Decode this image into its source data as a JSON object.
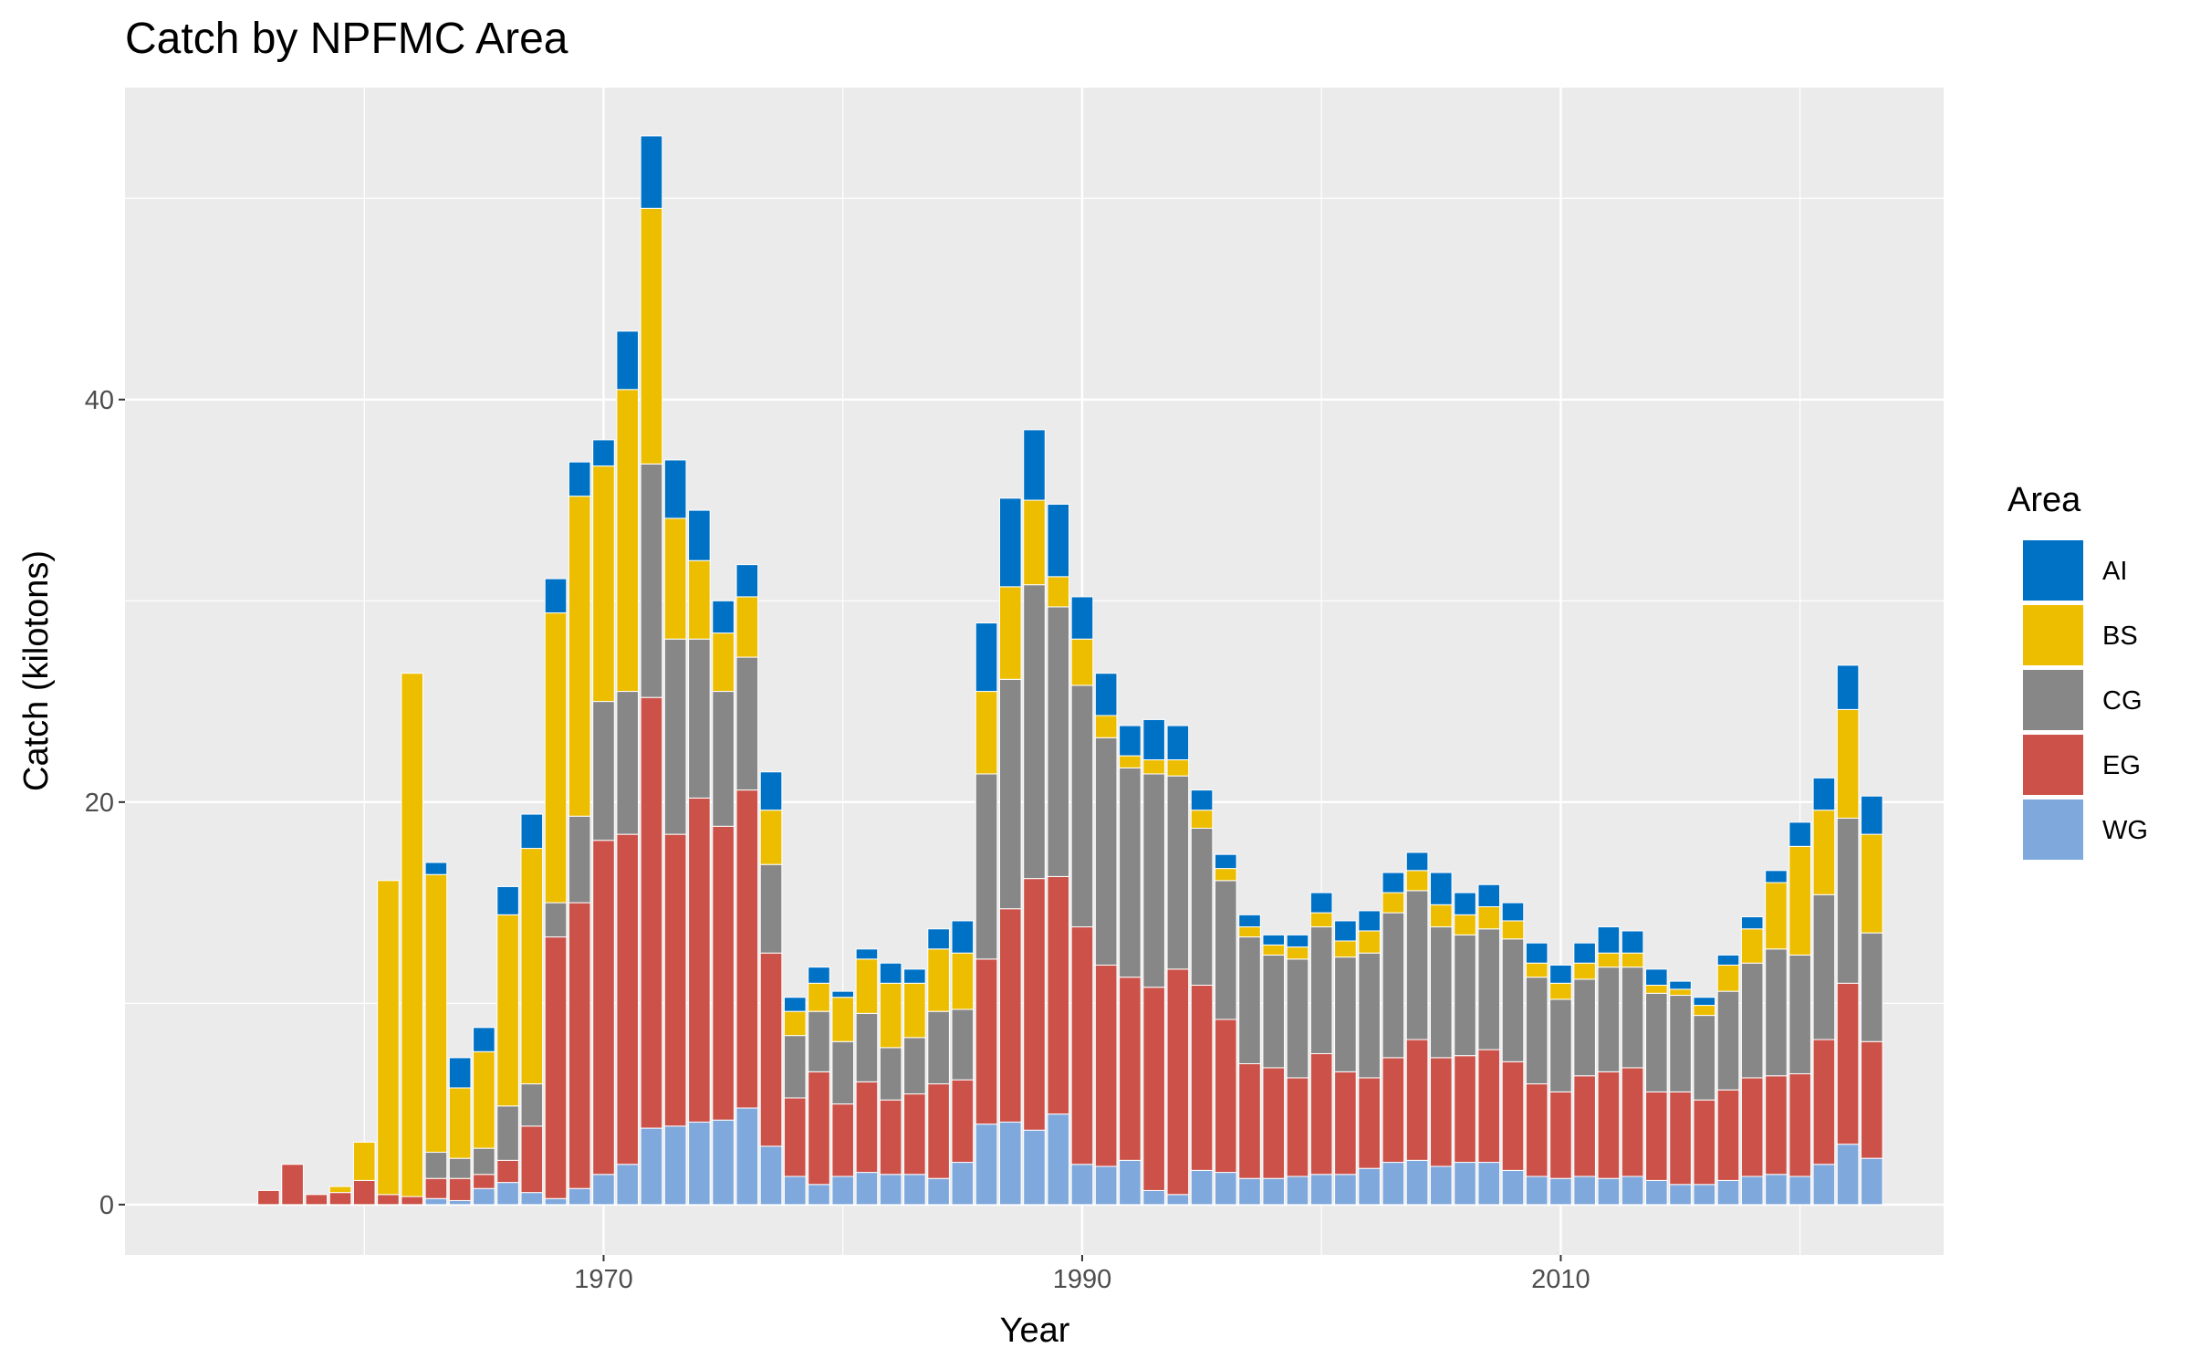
{
  "chart_data": {
    "type": "bar",
    "stacked": true,
    "title": "Catch by NPFMC Area",
    "xlabel": "Year",
    "ylabel": "Catch (kilotons)",
    "xlim": [
      1950,
      2026
    ],
    "ylim": [
      -2.5,
      55.5
    ],
    "x_ticks": [
      1970,
      1990,
      2010
    ],
    "y_ticks": [
      0,
      20,
      40
    ],
    "grid": true,
    "legend_title": "Area",
    "legend_position": "right",
    "x": [
      1956,
      1957,
      1958,
      1959,
      1960,
      1961,
      1962,
      1963,
      1964,
      1965,
      1966,
      1967,
      1968,
      1969,
      1970,
      1971,
      1972,
      1973,
      1974,
      1975,
      1976,
      1977,
      1978,
      1979,
      1980,
      1981,
      1982,
      1983,
      1984,
      1985,
      1986,
      1987,
      1988,
      1989,
      1990,
      1991,
      1992,
      1993,
      1994,
      1995,
      1996,
      1997,
      1998,
      1999,
      2000,
      2001,
      2002,
      2003,
      2004,
      2005,
      2006,
      2007,
      2008,
      2009,
      2010,
      2011,
      2012,
      2013,
      2014,
      2015,
      2016,
      2017,
      2018,
      2019,
      2020,
      2021,
      2022,
      2023
    ],
    "series": [
      {
        "name": "WG",
        "color": "#7fa8dd",
        "values": [
          0,
          0,
          0,
          0,
          0,
          0,
          0,
          0.3,
          0.2,
          0.8,
          1.1,
          0.6,
          0.3,
          0.8,
          1.5,
          2.0,
          3.8,
          3.9,
          4.1,
          4.2,
          4.8,
          2.9,
          1.4,
          1.0,
          1.4,
          1.6,
          1.5,
          1.5,
          1.3,
          2.1,
          4.0,
          4.1,
          3.7,
          4.5,
          2.0,
          1.9,
          2.2,
          0.7,
          0.5,
          1.7,
          1.6,
          1.3,
          1.3,
          1.4,
          1.5,
          1.5,
          1.8,
          2.1,
          2.2,
          1.9,
          2.1,
          2.1,
          1.7,
          1.4,
          1.3,
          1.4,
          1.3,
          1.4,
          1.2,
          1.0,
          1.0,
          1.2,
          1.4,
          1.5,
          1.4,
          2.0,
          3.0,
          2.3
        ]
      },
      {
        "name": "EG",
        "color": "#cc5148",
        "values": [
          0.7,
          2.0,
          0.5,
          0.6,
          1.2,
          0.5,
          0.4,
          1.0,
          1.1,
          0.7,
          1.1,
          3.3,
          13.0,
          14.2,
          16.6,
          16.4,
          21.4,
          14.5,
          16.1,
          14.6,
          15.8,
          9.6,
          3.9,
          5.6,
          3.6,
          4.5,
          3.7,
          4.0,
          4.7,
          4.1,
          8.2,
          10.6,
          12.5,
          11.8,
          11.8,
          10.0,
          9.1,
          10.1,
          11.2,
          9.2,
          7.6,
          5.7,
          5.5,
          4.9,
          6.0,
          5.1,
          4.5,
          5.2,
          6.0,
          5.4,
          5.3,
          5.6,
          5.4,
          4.6,
          4.3,
          5.0,
          5.3,
          5.4,
          4.4,
          4.6,
          4.2,
          4.5,
          4.9,
          4.9,
          5.1,
          6.2,
          8.0,
          5.8
        ]
      },
      {
        "name": "CG",
        "color": "#878787",
        "values": [
          0,
          0,
          0,
          0,
          0,
          0,
          0,
          1.3,
          1.0,
          1.3,
          2.7,
          2.1,
          1.7,
          4.3,
          6.9,
          7.1,
          11.6,
          9.7,
          7.9,
          6.7,
          6.6,
          4.4,
          3.1,
          3.0,
          3.1,
          3.4,
          2.6,
          2.8,
          3.6,
          3.5,
          9.2,
          11.4,
          14.6,
          13.4,
          12.0,
          11.3,
          10.4,
          10.6,
          9.6,
          7.8,
          6.9,
          6.3,
          5.6,
          5.9,
          6.3,
          5.7,
          6.2,
          7.2,
          7.4,
          6.5,
          6.0,
          6.0,
          6.1,
          5.3,
          4.6,
          4.8,
          5.2,
          5.0,
          4.9,
          4.8,
          4.2,
          4.9,
          5.7,
          6.3,
          5.9,
          7.2,
          8.2,
          5.4
        ]
      },
      {
        "name": "BS",
        "color": "#edbe00",
        "values": [
          0,
          0,
          0,
          0.3,
          1.9,
          15.6,
          26.0,
          13.8,
          3.5,
          4.8,
          9.5,
          11.7,
          14.4,
          15.9,
          11.7,
          15.0,
          12.7,
          6.0,
          3.9,
          2.9,
          3.0,
          2.7,
          1.2,
          1.4,
          2.2,
          2.7,
          3.2,
          2.7,
          3.1,
          2.8,
          4.1,
          4.6,
          4.2,
          1.5,
          2.3,
          1.1,
          0.6,
          0.7,
          0.8,
          0.9,
          0.6,
          0.5,
          0.5,
          0.6,
          0.7,
          0.8,
          1.1,
          1.0,
          1.0,
          1.1,
          1.0,
          1.1,
          0.9,
          0.7,
          0.8,
          0.8,
          0.7,
          0.7,
          0.4,
          0.3,
          0.5,
          1.3,
          1.7,
          3.3,
          5.4,
          4.2,
          5.4,
          4.9
        ]
      },
      {
        "name": "AI",
        "color": "#0072c6",
        "values": [
          0,
          0,
          0,
          0,
          0,
          0,
          0,
          0.6,
          1.5,
          1.2,
          1.4,
          1.7,
          1.7,
          1.7,
          1.3,
          2.9,
          3.6,
          2.9,
          2.5,
          1.6,
          1.6,
          1.9,
          0.7,
          0.8,
          0.3,
          0.5,
          1.0,
          0.7,
          1.0,
          1.6,
          3.4,
          4.4,
          3.5,
          3.6,
          2.1,
          2.1,
          1.5,
          2.0,
          1.7,
          1.0,
          0.7,
          0.6,
          0.5,
          0.6,
          1.0,
          1.0,
          1.0,
          1.0,
          0.9,
          1.6,
          1.1,
          1.1,
          0.9,
          1.0,
          0.9,
          1.0,
          1.3,
          1.1,
          0.8,
          0.4,
          0.4,
          0.5,
          0.6,
          0.6,
          1.2,
          1.6,
          2.2,
          1.9
        ]
      }
    ]
  }
}
